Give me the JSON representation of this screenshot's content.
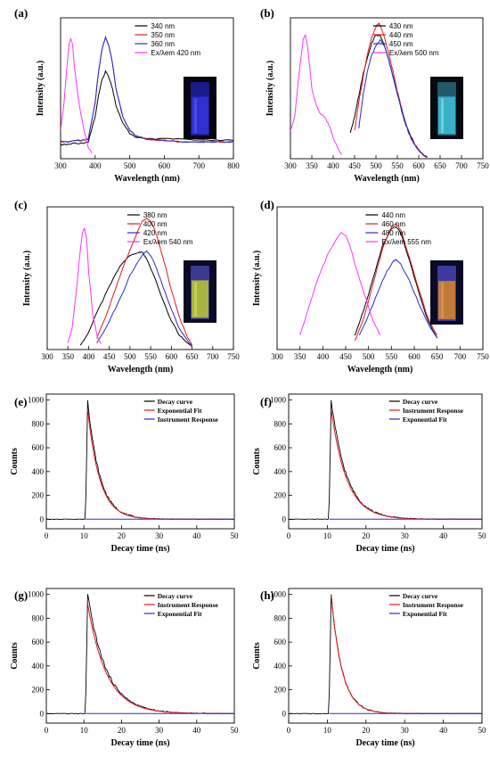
{
  "figure": {
    "chart_data": [
      {
        "panel": "(a)",
        "type": "line",
        "xlabel": "Wavelength (nm)",
        "ylabel": "Intensity (a.u.)",
        "xlim": [
          300,
          800
        ],
        "xticks": [
          300,
          400,
          500,
          600,
          700,
          800
        ],
        "yticks": false,
        "inset": "blue-vial",
        "series": [
          {
            "name": "340 nm",
            "color": "#000000",
            "x": [
              300,
              320,
              340,
              360,
              380,
              400,
              410,
              420,
              430,
              440,
              450,
              460,
              480,
              500,
              520,
              550,
              600,
              650,
              700,
              750,
              800
            ],
            "y": [
              0.1,
              0.1,
              0.11,
              0.11,
              0.12,
              0.3,
              0.45,
              0.56,
              0.62,
              0.58,
              0.5,
              0.38,
              0.25,
              0.18,
              0.15,
              0.14,
              0.14,
              0.14,
              0.13,
              0.13,
              0.13
            ]
          },
          {
            "name": "350 nm",
            "color": "#e41a1c",
            "x": [
              300,
              320,
              340,
              360,
              380,
              400,
              410,
              420,
              430,
              440,
              450,
              460,
              480,
              500,
              520,
              550,
              600,
              650,
              700,
              750,
              800
            ],
            "y": [
              0.12,
              0.12,
              0.13,
              0.13,
              0.14,
              0.4,
              0.62,
              0.78,
              0.86,
              0.8,
              0.68,
              0.5,
              0.3,
              0.2,
              0.16,
              0.14,
              0.13,
              0.12,
              0.12,
              0.12,
              0.12
            ]
          },
          {
            "name": "360 nm",
            "color": "#2a2ad4",
            "x": [
              300,
              320,
              340,
              360,
              380,
              400,
              410,
              420,
              430,
              440,
              450,
              460,
              480,
              500,
              520,
              550,
              600,
              650,
              700,
              750,
              800
            ],
            "y": [
              0.12,
              0.12,
              0.13,
              0.13,
              0.14,
              0.4,
              0.62,
              0.78,
              0.86,
              0.8,
              0.68,
              0.5,
              0.3,
              0.2,
              0.16,
              0.14,
              0.13,
              0.12,
              0.12,
              0.12,
              0.12
            ]
          },
          {
            "name": "Ex/λem 420 nm",
            "color": "#ff33ff",
            "x": [
              300,
              310,
              320,
              325,
              330,
              335,
              340,
              350,
              360,
              370,
              380,
              390
            ],
            "y": [
              0.2,
              0.4,
              0.7,
              0.82,
              0.85,
              0.8,
              0.65,
              0.45,
              0.3,
              0.18,
              0.08,
              0.04
            ]
          }
        ]
      },
      {
        "panel": "(b)",
        "type": "line",
        "xlabel": "Wavelength (nm)",
        "ylabel": "Intensity (a.u.)",
        "xlim": [
          300,
          750
        ],
        "xticks": [
          300,
          350,
          400,
          450,
          500,
          550,
          600,
          650,
          700,
          750
        ],
        "yticks": false,
        "inset": "cyan-vial",
        "series": [
          {
            "name": "430 nm",
            "color": "#000000",
            "x": [
              440,
              450,
              460,
              470,
              480,
              490,
              500,
              510,
              520,
              530,
              540,
              550,
              560,
              570,
              580,
              590,
              600,
              610,
              620
            ],
            "y": [
              0.18,
              0.3,
              0.45,
              0.6,
              0.72,
              0.82,
              0.88,
              0.87,
              0.8,
              0.7,
              0.58,
              0.46,
              0.34,
              0.24,
              0.16,
              0.1,
              0.06,
              0.03,
              0.01
            ]
          },
          {
            "name": "440 nm",
            "color": "#e41a1c",
            "x": [
              450,
              460,
              470,
              480,
              490,
              500,
              505,
              510,
              520,
              530,
              540,
              550,
              560,
              570,
              580,
              590,
              600,
              610,
              620
            ],
            "y": [
              0.2,
              0.4,
              0.58,
              0.74,
              0.86,
              0.94,
              0.96,
              0.95,
              0.86,
              0.74,
              0.62,
              0.48,
              0.36,
              0.25,
              0.17,
              0.1,
              0.06,
              0.03,
              0.01
            ]
          },
          {
            "name": "450 nm",
            "color": "#2a2ad4",
            "x": [
              460,
              470,
              480,
              490,
              500,
              510,
              520,
              530,
              540,
              550,
              560,
              570,
              580,
              590,
              600,
              610,
              620
            ],
            "y": [
              0.22,
              0.45,
              0.62,
              0.74,
              0.8,
              0.84,
              0.8,
              0.7,
              0.58,
              0.46,
              0.35,
              0.25,
              0.17,
              0.11,
              0.06,
              0.03,
              0.01
            ]
          },
          {
            "name": "Ex/λem 500 nm",
            "color": "#ff33ff",
            "x": [
              300,
              310,
              320,
              330,
              335,
              340,
              350,
              360,
              370,
              380,
              390,
              400,
              410,
              420
            ],
            "y": [
              0.2,
              0.3,
              0.6,
              0.85,
              0.88,
              0.8,
              0.5,
              0.38,
              0.32,
              0.3,
              0.24,
              0.15,
              0.08,
              0.03
            ]
          }
        ]
      },
      {
        "panel": "(c)",
        "type": "line",
        "xlabel": "Wavelength (nm)",
        "ylabel": "Intensity (a.u.)",
        "xlim": [
          300,
          750
        ],
        "xticks": [
          300,
          350,
          400,
          450,
          500,
          550,
          600,
          650,
          700,
          750
        ],
        "yticks": false,
        "inset": "yellow-vial",
        "series": [
          {
            "name": "380 nm",
            "color": "#000000",
            "x": [
              380,
              400,
              420,
              440,
              460,
              480,
              500,
              520,
              530,
              540,
              560,
              580,
              600,
              620,
              640,
              650
            ],
            "y": [
              0.03,
              0.12,
              0.26,
              0.38,
              0.5,
              0.6,
              0.66,
              0.68,
              0.68,
              0.64,
              0.5,
              0.34,
              0.2,
              0.1,
              0.04,
              0.02
            ]
          },
          {
            "name": "400 nm",
            "color": "#e41a1c",
            "x": [
              420,
              440,
              460,
              480,
              500,
              520,
              530,
              540,
              550,
              560,
              580,
              600,
              620,
              640,
              650
            ],
            "y": [
              0.08,
              0.22,
              0.38,
              0.55,
              0.7,
              0.84,
              0.9,
              0.92,
              0.9,
              0.84,
              0.64,
              0.42,
              0.22,
              0.08,
              0.03
            ]
          },
          {
            "name": "420 nm",
            "color": "#2a2ad4",
            "x": [
              420,
              440,
              460,
              480,
              500,
              520,
              530,
              540,
              550,
              560,
              580,
              600,
              620,
              640,
              650
            ],
            "y": [
              0.05,
              0.14,
              0.26,
              0.38,
              0.52,
              0.62,
              0.66,
              0.69,
              0.66,
              0.6,
              0.44,
              0.28,
              0.14,
              0.06,
              0.02
            ]
          },
          {
            "name": "Ex/λem 540 nm",
            "color": "#ff33ff",
            "x": [
              350,
              360,
              370,
              380,
              385,
              390,
              395,
              400,
              410,
              420,
              430
            ],
            "y": [
              0.05,
              0.15,
              0.4,
              0.7,
              0.82,
              0.85,
              0.78,
              0.55,
              0.25,
              0.1,
              0.04
            ]
          }
        ]
      },
      {
        "panel": "(d)",
        "type": "line",
        "xlabel": "Wavelength (nm)",
        "ylabel": "Intensity (a.u.)",
        "xlim": [
          300,
          750
        ],
        "xticks": [
          300,
          350,
          400,
          450,
          500,
          550,
          600,
          650,
          700,
          750
        ],
        "yticks": false,
        "inset": "orange-vial",
        "series": [
          {
            "name": "440 nm",
            "color": "#000000",
            "x": [
              470,
              490,
              510,
              530,
              550,
              560,
              570,
              590,
              610,
              630,
              650
            ],
            "y": [
              0.1,
              0.28,
              0.5,
              0.72,
              0.85,
              0.86,
              0.82,
              0.62,
              0.4,
              0.2,
              0.08
            ]
          },
          {
            "name": "460 nm",
            "color": "#e41a1c",
            "x": [
              470,
              490,
              510,
              530,
              550,
              560,
              570,
              590,
              610,
              630,
              650
            ],
            "y": [
              0.06,
              0.22,
              0.46,
              0.7,
              0.86,
              0.88,
              0.84,
              0.64,
              0.42,
              0.22,
              0.1
            ]
          },
          {
            "name": "480 nm",
            "color": "#2a2ad4",
            "x": [
              480,
              500,
              520,
              540,
              555,
              560,
              570,
              590,
              610,
              630,
              650
            ],
            "y": [
              0.1,
              0.24,
              0.4,
              0.55,
              0.62,
              0.63,
              0.6,
              0.48,
              0.32,
              0.18,
              0.08
            ]
          },
          {
            "name": "Ex/λem 555 nm",
            "color": "#ff33ff",
            "x": [
              350,
              370,
              390,
              410,
              430,
              440,
              450,
              460,
              470,
              490,
              510,
              525
            ],
            "y": [
              0.1,
              0.3,
              0.5,
              0.66,
              0.78,
              0.82,
              0.8,
              0.72,
              0.6,
              0.4,
              0.2,
              0.1
            ]
          }
        ]
      },
      {
        "panel": "(e)",
        "type": "line",
        "xlabel": "Decay time (ns)",
        "ylabel": "Counts",
        "xlim": [
          0,
          50
        ],
        "ylim": [
          -80,
          1050
        ],
        "xticks": [
          0,
          10,
          20,
          30,
          40,
          50
        ],
        "yticks": [
          0,
          200,
          400,
          600,
          800,
          1000
        ],
        "decay": {
          "peak_x": 11,
          "peak_y": 1000,
          "tau": 3.2,
          "fit_peak": 920
        },
        "series": [
          {
            "name": "Decay curve",
            "color": "#000000",
            "role": "decay"
          },
          {
            "name": "Exponential Fit",
            "color": "#e41a1c",
            "role": "fit"
          },
          {
            "name": "Instrument Response",
            "color": "#2a2ad4",
            "role": "flat"
          }
        ]
      },
      {
        "panel": "(f)",
        "type": "line",
        "xlabel": "Decay time (ns)",
        "ylabel": "Counts",
        "xlim": [
          0,
          50
        ],
        "ylim": [
          -80,
          1050
        ],
        "xticks": [
          0,
          10,
          20,
          30,
          40,
          50
        ],
        "yticks": [
          0,
          200,
          400,
          600,
          800,
          1000
        ],
        "decay": {
          "peak_x": 11,
          "peak_y": 1000,
          "tau": 4.0,
          "fit_peak": 920
        },
        "series": [
          {
            "name": "Decay curve",
            "color": "#000000",
            "role": "decay"
          },
          {
            "name": "Instrument Response",
            "color": "#e41a1c",
            "role": "fit"
          },
          {
            "name": "Exponential Fit",
            "color": "#2a2ad4",
            "role": "flat"
          }
        ]
      },
      {
        "panel": "(g)",
        "type": "line",
        "xlabel": "Decay time (ns)",
        "ylabel": "Counts",
        "xlim": [
          0,
          50
        ],
        "ylim": [
          -80,
          1050
        ],
        "xticks": [
          0,
          10,
          20,
          30,
          40,
          50
        ],
        "yticks": [
          0,
          200,
          400,
          600,
          800,
          1000
        ],
        "decay": {
          "peak_x": 11,
          "peak_y": 1000,
          "tau": 5.0,
          "fit_peak": 920
        },
        "series": [
          {
            "name": "Decay curve",
            "color": "#000000",
            "role": "decay"
          },
          {
            "name": "Instrument Response",
            "color": "#e41a1c",
            "role": "fit"
          },
          {
            "name": "Exponential Fit",
            "color": "#2a2ad4",
            "role": "flat"
          }
        ]
      },
      {
        "panel": "(h)",
        "type": "line",
        "xlabel": "Decay time (ns)",
        "ylabel": "Counts",
        "xlim": [
          0,
          50
        ],
        "ylim": [
          -80,
          1050
        ],
        "xticks": [
          0,
          10,
          20,
          30,
          40,
          50
        ],
        "yticks": [
          0,
          200,
          400,
          600,
          800,
          1000
        ],
        "decay": {
          "peak_x": 11,
          "peak_y": 1000,
          "tau": 2.8,
          "fit_peak": 1000
        },
        "series": [
          {
            "name": "Decay curve",
            "color": "#000000",
            "role": "decay"
          },
          {
            "name": "Instrument Response",
            "color": "#e41a1c",
            "role": "fit"
          },
          {
            "name": "Exponential Fit",
            "color": "#2a2ad4",
            "role": "flat"
          }
        ]
      }
    ]
  }
}
